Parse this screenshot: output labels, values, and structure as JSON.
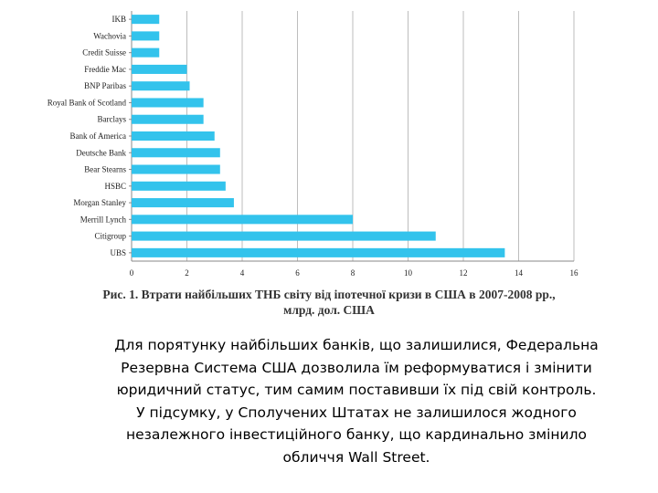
{
  "chart_data": {
    "type": "bar",
    "orientation": "horizontal",
    "categories": [
      "IKB",
      "Wachovia",
      "Credit Suisse",
      "Freddie Mac",
      "BNP Paribas",
      "Royal Bank of Scotland",
      "Barclays",
      "Bank of America",
      "Deutsche Bank",
      "Bear Stearns",
      "HSBC",
      "Morgan Stanley",
      "Merrill Lynch",
      "Citigroup",
      "UBS"
    ],
    "values": [
      1.0,
      1.0,
      1.0,
      2.0,
      2.1,
      2.6,
      2.6,
      3.0,
      3.2,
      3.2,
      3.4,
      3.7,
      8.0,
      11.0,
      13.5
    ],
    "xlim": [
      0,
      16
    ],
    "xticks": [
      "0",
      "2",
      "4",
      "6",
      "8",
      "10",
      "12",
      "14",
      "16"
    ],
    "grid": "vertical",
    "bar_color": "#33c3ec"
  },
  "caption": {
    "line1": "Рис. 1. Втрати найбільших ТНБ світу від іпотечної кризи в США в 2007-2008 рр.,",
    "line2": "млрд. дол. США"
  },
  "paragraph": [
    "Для  порятунку  найбільших банків, що залишилися, Федеральна",
    "Резервна Система США дозволила їм реформуватися  і змінити",
    "юридичний статус, тим самим поставивши їх під свій контроль.",
    "У підсумку, у Сполучених Штатах не залишилося жодного",
    "незалежного інвестиційного банку, що кардинально змінило",
    "обличчя Wall Street."
  ]
}
